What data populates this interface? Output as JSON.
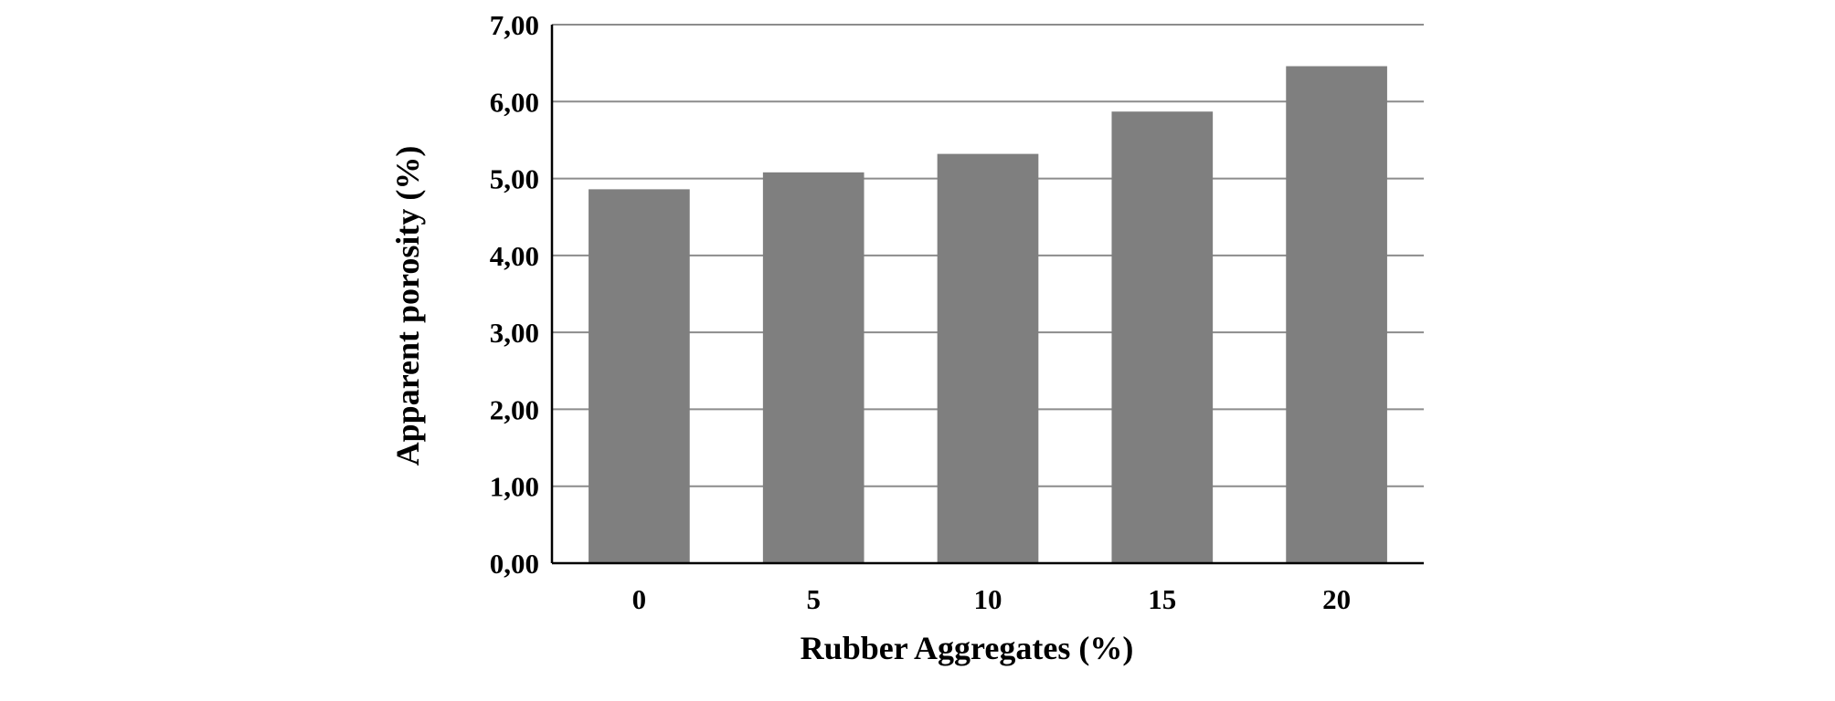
{
  "chart_data": {
    "type": "bar",
    "title": "",
    "xlabel": "Rubber Aggregates (%)",
    "ylabel": "Apparent porosity (%)",
    "categories": [
      "0",
      "5",
      "10",
      "15",
      "20"
    ],
    "values": [
      4.86,
      5.08,
      5.32,
      5.87,
      6.46
    ],
    "ylim": [
      0,
      7
    ],
    "yticks": [
      0,
      1,
      2,
      3,
      4,
      5,
      6,
      7
    ],
    "ytick_labels": [
      "0,00",
      "1,00",
      "2,00",
      "3,00",
      "4,00",
      "5,00",
      "6,00",
      "7,00"
    ],
    "grid": true,
    "legend": "none",
    "bar_color": "#7f7f7f",
    "grid_color": "#8c8c8c",
    "axis_color": "#000000"
  }
}
